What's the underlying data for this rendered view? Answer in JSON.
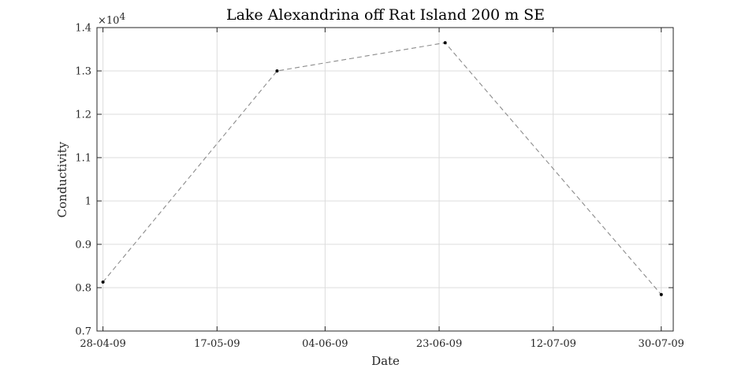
{
  "chart_data": {
    "type": "line",
    "title": "Lake Alexandrina off Rat Island 200 m SE",
    "xlabel": "Date",
    "ylabel": "Conductivity",
    "y_exponent_label": "×10",
    "y_exponent_power": "4",
    "ylim": [
      0.7,
      1.4
    ],
    "xlim": [
      "2009-04-27",
      "2009-08-01"
    ],
    "y_ticks": [
      0.7,
      0.8,
      0.9,
      1.0,
      1.1,
      1.2,
      1.3,
      1.4
    ],
    "y_tick_labels": [
      "0.7",
      "0.8",
      "0.9",
      "1",
      "1.1",
      "1.2",
      "1.3",
      "1.4"
    ],
    "x_ticks": [
      "2009-04-28",
      "2009-05-17",
      "2009-06-04",
      "2009-06-23",
      "2009-07-12",
      "2009-07-30"
    ],
    "x_tick_labels": [
      "28-04-09",
      "17-05-09",
      "04-06-09",
      "23-06-09",
      "12-07-09",
      "30-07-09"
    ],
    "grid": true,
    "line_style": "dashed",
    "line_color": "#8c8c8c",
    "marker_color": "#000000",
    "series": [
      {
        "x": [
          "2009-04-28",
          "2009-05-27",
          "2009-06-24",
          "2009-07-30"
        ],
        "values": [
          0.813,
          1.3,
          1.365,
          0.784
        ]
      }
    ]
  }
}
